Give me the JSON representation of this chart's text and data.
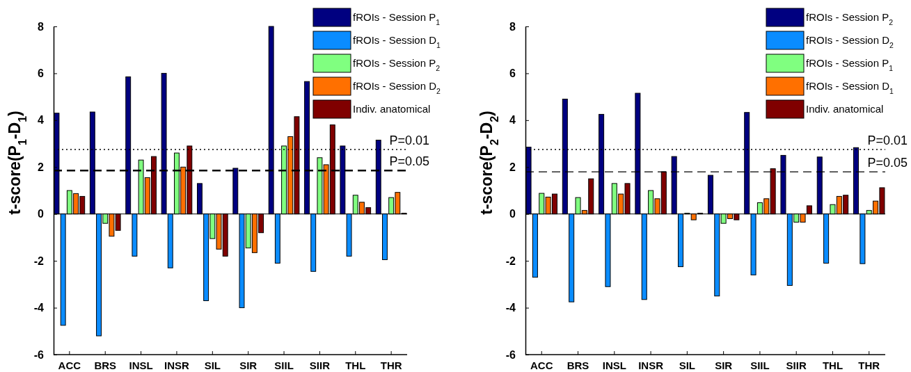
{
  "chart_data": [
    {
      "type": "bar",
      "ylabel": "t-score(P$_{1}$-D$_{1}$)",
      "categories": [
        "ACC",
        "BRS",
        "INSL",
        "INSR",
        "SIL",
        "SIR",
        "SIIL",
        "SIIR",
        "THL",
        "THR"
      ],
      "ylim": [
        -6,
        8
      ],
      "yticks": [
        -6,
        -4,
        -2,
        0,
        2,
        4,
        6,
        8
      ],
      "legend": "top right",
      "series": [
        {
          "name": "fROIs - Session P$_{1}$",
          "color": "#000080",
          "values": [
            4.3,
            4.35,
            5.85,
            6.0,
            1.3,
            1.95,
            8.0,
            5.65,
            2.9,
            3.15
          ]
        },
        {
          "name": "fROIs - Session D$_{1}$",
          "color": "#0a8cff",
          "values": [
            -4.75,
            -5.2,
            -1.8,
            -2.3,
            -3.7,
            -4.0,
            -2.1,
            -2.45,
            -1.8,
            -1.95
          ]
        },
        {
          "name": "fROIs - Session P$_{2}$",
          "color": "#80ff80",
          "values": [
            1.0,
            -0.4,
            2.3,
            2.6,
            -1.05,
            -1.45,
            2.9,
            2.4,
            0.8,
            0.7
          ]
        },
        {
          "name": "fROIs - Session D$_{2}$",
          "color": "#ff7000",
          "values": [
            0.87,
            -0.95,
            1.55,
            2.0,
            -1.5,
            -1.65,
            3.3,
            2.1,
            0.5,
            0.92
          ]
        },
        {
          "name": "Indiv. anatomical",
          "color": "#800000",
          "values": [
            0.75,
            -0.7,
            2.45,
            2.9,
            -1.8,
            -0.8,
            4.15,
            3.8,
            0.27,
            0.03
          ]
        }
      ],
      "ref_lines": [
        {
          "axis": "y",
          "value": 2.75,
          "line_style": "dotted"
        },
        {
          "axis": "y",
          "value": 1.85,
          "line_style": "dashed"
        }
      ],
      "annotations": [
        {
          "text": "P=0.01",
          "y": 2.75
        },
        {
          "text": "P=0.05",
          "y": 1.85
        }
      ]
    },
    {
      "type": "bar",
      "ylabel": "t-score(P$_{2}$-D$_{2}$)",
      "categories": [
        "ACC",
        "BRS",
        "INSL",
        "INSR",
        "SIL",
        "SIR",
        "SIIL",
        "SIIR",
        "THL",
        "THR"
      ],
      "ylim": [
        -6,
        8
      ],
      "yticks": [
        -6,
        -4,
        -2,
        0,
        2,
        4,
        6,
        8
      ],
      "legend": "top right",
      "series": [
        {
          "name": "fROIs - Session P$_{2}$",
          "color": "#000080",
          "values": [
            2.85,
            4.9,
            4.25,
            5.15,
            2.45,
            1.65,
            4.33,
            2.5,
            2.43,
            2.83
          ]
        },
        {
          "name": "fROIs - Session D$_{2}$",
          "color": "#0a8cff",
          "values": [
            -2.7,
            -3.75,
            -3.1,
            -3.65,
            -2.25,
            -3.5,
            -2.6,
            -3.05,
            -2.1,
            -2.12
          ]
        },
        {
          "name": "fROIs - Session P$_{1}$",
          "color": "#80ff80",
          "values": [
            0.88,
            0.7,
            1.3,
            1.0,
            0.03,
            -0.4,
            0.48,
            -0.35,
            0.4,
            0.15
          ]
        },
        {
          "name": "fROIs - Session D$_{1}$",
          "color": "#ff7000",
          "values": [
            0.72,
            0.15,
            0.85,
            0.65,
            -0.25,
            -0.2,
            0.65,
            -0.35,
            0.75,
            0.55
          ]
        },
        {
          "name": "Indiv. anatomical",
          "color": "#800000",
          "values": [
            0.85,
            1.5,
            1.3,
            1.8,
            0.03,
            -0.25,
            1.93,
            0.35,
            0.8,
            1.12
          ]
        }
      ],
      "ref_lines": [
        {
          "axis": "y",
          "value": 2.75,
          "line_style": "dotted"
        },
        {
          "axis": "y",
          "value": 1.8,
          "line_style": "dashed"
        }
      ],
      "annotations": [
        {
          "text": "P=0.01",
          "y": 2.75
        },
        {
          "text": "P=0.05",
          "y": 1.8
        }
      ]
    }
  ]
}
